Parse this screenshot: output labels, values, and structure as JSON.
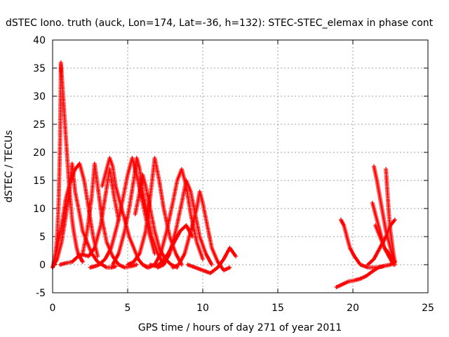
{
  "chart_data": {
    "type": "scatter",
    "title": "dSTEC Iono. truth (auck, Lon=174, Lat=-36, h=132): STEC-STEC_elemax in phase cont",
    "xlabel": "GPS time / hours of day 271 of year 2011",
    "ylabel": "dSTEC  / TECUs",
    "xlim": [
      0,
      25
    ],
    "ylim": [
      -5,
      40
    ],
    "xticks": [
      "0",
      "5",
      "10",
      "15",
      "20",
      "25"
    ],
    "yticks": [
      "-5",
      "0",
      "5",
      "10",
      "15",
      "20",
      "25",
      "30",
      "35",
      "40"
    ],
    "grid": true,
    "marker": "plus",
    "color": "#ff0000",
    "series": [
      {
        "x": [
          0.0,
          0.1,
          0.2,
          0.3,
          0.4,
          0.5,
          0.55,
          0.6,
          0.7,
          0.8,
          0.9,
          1.0,
          1.1,
          1.2,
          1.3,
          1.4,
          1.5,
          1.6,
          1.7,
          1.8,
          1.9,
          2.0
        ],
        "y": [
          -0.5,
          0.5,
          2,
          5,
          11,
          22,
          36,
          34,
          30,
          26,
          22,
          18,
          14,
          11,
          8,
          6,
          4.5,
          3,
          2,
          1.5,
          1,
          0.5
        ]
      },
      {
        "x": [
          0.0,
          0.3,
          0.6,
          0.9,
          1.2,
          1.5,
          1.8,
          2.1,
          2.4,
          2.7,
          3.0
        ],
        "y": [
          -0.5,
          3,
          7,
          12,
          15,
          17,
          18,
          15,
          10,
          5,
          1.5
        ]
      },
      {
        "x": [
          0.0,
          0.3,
          0.6,
          0.9,
          1.1,
          1.3,
          1.5,
          1.8,
          2.0,
          2.3,
          2.6,
          3.0,
          3.3,
          3.6,
          3.9,
          4.2
        ],
        "y": [
          -0.5,
          1,
          4,
          9,
          13,
          18,
          13,
          9,
          6,
          4,
          2,
          0.5,
          0,
          -0.5,
          -0.5,
          -0.3
        ]
      },
      {
        "x": [
          0.5,
          0.9,
          1.3,
          1.7,
          2.0,
          2.4,
          2.8,
          3.2,
          3.5,
          3.8,
          4.1,
          4.4
        ],
        "y": [
          0,
          0.3,
          0.5,
          1.5,
          1.8,
          1.5,
          3,
          7,
          12,
          17,
          12,
          8
        ]
      },
      {
        "x": [
          2.0,
          2.3,
          2.6,
          2.8,
          3.0,
          3.3,
          3.6,
          4.0,
          4.4,
          4.8,
          5.2,
          5.6
        ],
        "y": [
          2,
          6,
          12,
          18,
          14,
          8,
          4,
          1.5,
          0,
          -0.5,
          -0.3,
          0
        ]
      },
      {
        "x": [
          3.3,
          3.6,
          3.8,
          4.0,
          4.2,
          4.5,
          4.8,
          5.1,
          5.4,
          5.7,
          6.0,
          6.3
        ],
        "y": [
          14,
          17,
          19,
          17.5,
          14,
          11,
          8,
          5,
          3,
          1,
          0,
          -0.5
        ]
      },
      {
        "x": [
          2.5,
          2.8,
          3.1,
          3.5,
          3.9,
          4.3,
          4.7,
          5.0,
          5.3,
          5.6,
          6.0,
          6.4,
          6.8
        ],
        "y": [
          -0.5,
          -0.3,
          0,
          1,
          3,
          7,
          12,
          16,
          19,
          16,
          11,
          6,
          2
        ]
      },
      {
        "x": [
          4.0,
          4.4,
          4.8,
          5.1,
          5.4,
          5.6,
          5.8,
          6.0,
          6.3,
          6.6,
          7.0,
          7.4
        ],
        "y": [
          0,
          2,
          6,
          10,
          15,
          19,
          17,
          13,
          9,
          5,
          2,
          0
        ]
      },
      {
        "x": [
          5.5,
          5.8,
          6.0,
          6.2,
          6.5,
          6.8,
          7.1,
          7.5,
          7.9,
          8.3
        ],
        "y": [
          9,
          13,
          16,
          14,
          10,
          6,
          3,
          1,
          0,
          -0.5
        ]
      },
      {
        "x": [
          5.0,
          5.4,
          5.8,
          6.2,
          6.5,
          6.8,
          7.1,
          7.4,
          7.8,
          8.2,
          8.6
        ],
        "y": [
          0,
          0.5,
          2,
          6,
          12,
          19,
          15,
          10,
          5,
          2,
          0
        ]
      },
      {
        "x": [
          6.0,
          6.4,
          6.8,
          7.2,
          7.6,
          8.0,
          8.3,
          8.6,
          8.9,
          9.2,
          9.6,
          10.0
        ],
        "y": [
          0,
          -0.5,
          0,
          2,
          6,
          11,
          15,
          17,
          14,
          9,
          4,
          1
        ]
      },
      {
        "x": [
          7.0,
          7.4,
          7.8,
          8.2,
          8.6,
          8.9,
          9.2,
          9.5,
          9.8,
          10.2,
          10.6
        ],
        "y": [
          -0.5,
          0,
          2,
          6,
          11,
          15,
          13,
          9,
          5,
          2,
          0
        ]
      },
      {
        "x": [
          6.5,
          6.9,
          7.3,
          7.7,
          8.1,
          8.5,
          8.9,
          9.3
        ],
        "y": [
          0,
          -0.3,
          0.5,
          2,
          4,
          6,
          7,
          5
        ]
      },
      {
        "x": [
          8.0,
          8.4,
          8.8,
          9.2,
          9.6,
          9.8,
          10.0,
          10.3,
          10.6,
          11.0,
          11.4,
          11.8
        ],
        "y": [
          -0.5,
          0,
          2,
          6,
          10,
          13,
          11,
          7,
          3,
          0.5,
          -1,
          -0.5
        ]
      },
      {
        "x": [
          9.0,
          9.5,
          10.0,
          10.5,
          11.0,
          11.4,
          11.8,
          12.2
        ],
        "y": [
          0,
          -0.5,
          -1,
          -1.5,
          -0.5,
          1,
          3,
          1.5
        ]
      },
      {
        "x": [
          18.9,
          19.3,
          19.7,
          20.1,
          20.5,
          20.9,
          21.3,
          21.7,
          22.1,
          22.5,
          22.8
        ],
        "y": [
          -4,
          -3.5,
          -3,
          -2.8,
          -2.5,
          -2,
          -1.2,
          -0.5,
          -0.2,
          0,
          0.5
        ]
      },
      {
        "x": [
          19.2,
          19.4,
          19.6,
          19.8,
          20.1,
          20.5,
          21.0,
          21.5,
          22.0,
          22.5
        ],
        "y": [
          8,
          7,
          5,
          3,
          1.5,
          0,
          -0.5,
          -0.5,
          -0.3,
          0
        ]
      },
      {
        "x": [
          21.4,
          21.6,
          21.8,
          22.0,
          22.2,
          22.4,
          22.6,
          22.8
        ],
        "y": [
          17.5,
          15,
          12,
          9,
          6,
          4,
          2,
          0
        ]
      },
      {
        "x": [
          21.3,
          21.5,
          21.7,
          21.9,
          22.1,
          22.3,
          22.5,
          22.7
        ],
        "y": [
          11,
          9,
          7,
          5,
          3,
          2,
          1,
          0
        ]
      },
      {
        "x": [
          22.2,
          22.3,
          22.4,
          22.5,
          22.6,
          22.7,
          22.8
        ],
        "y": [
          17,
          13,
          9,
          6,
          4,
          2,
          0.5
        ]
      },
      {
        "x": [
          21.5,
          21.8,
          22.1,
          22.4,
          22.6,
          22.8
        ],
        "y": [
          7,
          5,
          3,
          2,
          1,
          0.5
        ]
      },
      {
        "x": [
          21.0,
          21.4,
          21.8,
          22.2,
          22.5,
          22.8
        ],
        "y": [
          0,
          1,
          3,
          5,
          7,
          8
        ]
      }
    ]
  }
}
